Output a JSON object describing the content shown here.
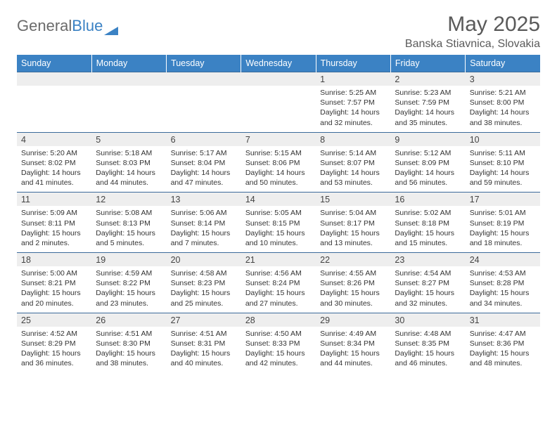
{
  "brand": {
    "part1": "General",
    "part2": "Blue"
  },
  "title": "May 2025",
  "subtitle": "Banska Stiavnica, Slovakia",
  "colors": {
    "header_bg": "#3b82c4",
    "header_text": "#ffffff",
    "daynum_bg": "#eeeeee",
    "rule": "#3b6a9a",
    "title_color": "#5a5a5a",
    "logo_gray": "#6b6b6b"
  },
  "weekdays": [
    "Sunday",
    "Monday",
    "Tuesday",
    "Wednesday",
    "Thursday",
    "Friday",
    "Saturday"
  ],
  "weeks": [
    {
      "nums": [
        "",
        "",
        "",
        "",
        "1",
        "2",
        "3"
      ],
      "details": [
        "",
        "",
        "",
        "",
        "Sunrise: 5:25 AM\nSunset: 7:57 PM\nDaylight: 14 hours and 32 minutes.",
        "Sunrise: 5:23 AM\nSunset: 7:59 PM\nDaylight: 14 hours and 35 minutes.",
        "Sunrise: 5:21 AM\nSunset: 8:00 PM\nDaylight: 14 hours and 38 minutes."
      ]
    },
    {
      "nums": [
        "4",
        "5",
        "6",
        "7",
        "8",
        "9",
        "10"
      ],
      "details": [
        "Sunrise: 5:20 AM\nSunset: 8:02 PM\nDaylight: 14 hours and 41 minutes.",
        "Sunrise: 5:18 AM\nSunset: 8:03 PM\nDaylight: 14 hours and 44 minutes.",
        "Sunrise: 5:17 AM\nSunset: 8:04 PM\nDaylight: 14 hours and 47 minutes.",
        "Sunrise: 5:15 AM\nSunset: 8:06 PM\nDaylight: 14 hours and 50 minutes.",
        "Sunrise: 5:14 AM\nSunset: 8:07 PM\nDaylight: 14 hours and 53 minutes.",
        "Sunrise: 5:12 AM\nSunset: 8:09 PM\nDaylight: 14 hours and 56 minutes.",
        "Sunrise: 5:11 AM\nSunset: 8:10 PM\nDaylight: 14 hours and 59 minutes."
      ]
    },
    {
      "nums": [
        "11",
        "12",
        "13",
        "14",
        "15",
        "16",
        "17"
      ],
      "details": [
        "Sunrise: 5:09 AM\nSunset: 8:11 PM\nDaylight: 15 hours and 2 minutes.",
        "Sunrise: 5:08 AM\nSunset: 8:13 PM\nDaylight: 15 hours and 5 minutes.",
        "Sunrise: 5:06 AM\nSunset: 8:14 PM\nDaylight: 15 hours and 7 minutes.",
        "Sunrise: 5:05 AM\nSunset: 8:15 PM\nDaylight: 15 hours and 10 minutes.",
        "Sunrise: 5:04 AM\nSunset: 8:17 PM\nDaylight: 15 hours and 13 minutes.",
        "Sunrise: 5:02 AM\nSunset: 8:18 PM\nDaylight: 15 hours and 15 minutes.",
        "Sunrise: 5:01 AM\nSunset: 8:19 PM\nDaylight: 15 hours and 18 minutes."
      ]
    },
    {
      "nums": [
        "18",
        "19",
        "20",
        "21",
        "22",
        "23",
        "24"
      ],
      "details": [
        "Sunrise: 5:00 AM\nSunset: 8:21 PM\nDaylight: 15 hours and 20 minutes.",
        "Sunrise: 4:59 AM\nSunset: 8:22 PM\nDaylight: 15 hours and 23 minutes.",
        "Sunrise: 4:58 AM\nSunset: 8:23 PM\nDaylight: 15 hours and 25 minutes.",
        "Sunrise: 4:56 AM\nSunset: 8:24 PM\nDaylight: 15 hours and 27 minutes.",
        "Sunrise: 4:55 AM\nSunset: 8:26 PM\nDaylight: 15 hours and 30 minutes.",
        "Sunrise: 4:54 AM\nSunset: 8:27 PM\nDaylight: 15 hours and 32 minutes.",
        "Sunrise: 4:53 AM\nSunset: 8:28 PM\nDaylight: 15 hours and 34 minutes."
      ]
    },
    {
      "nums": [
        "25",
        "26",
        "27",
        "28",
        "29",
        "30",
        "31"
      ],
      "details": [
        "Sunrise: 4:52 AM\nSunset: 8:29 PM\nDaylight: 15 hours and 36 minutes.",
        "Sunrise: 4:51 AM\nSunset: 8:30 PM\nDaylight: 15 hours and 38 minutes.",
        "Sunrise: 4:51 AM\nSunset: 8:31 PM\nDaylight: 15 hours and 40 minutes.",
        "Sunrise: 4:50 AM\nSunset: 8:33 PM\nDaylight: 15 hours and 42 minutes.",
        "Sunrise: 4:49 AM\nSunset: 8:34 PM\nDaylight: 15 hours and 44 minutes.",
        "Sunrise: 4:48 AM\nSunset: 8:35 PM\nDaylight: 15 hours and 46 minutes.",
        "Sunrise: 4:47 AM\nSunset: 8:36 PM\nDaylight: 15 hours and 48 minutes."
      ]
    }
  ]
}
